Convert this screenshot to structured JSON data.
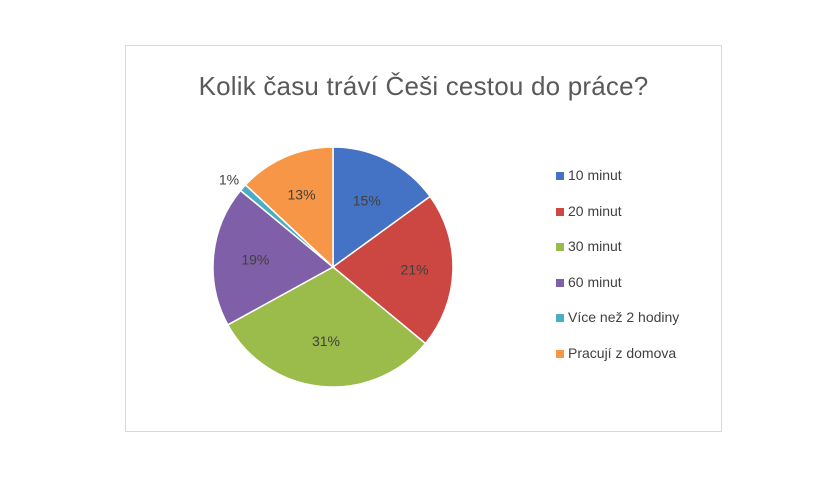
{
  "chart_data": {
    "type": "pie",
    "title": "Kolik času tráví Češi cestou do práce?",
    "categories": [
      "10 minut",
      "20 minut",
      "30 minut",
      "60 minut",
      "Více než 2 hodiny",
      "Pracují z domova"
    ],
    "values": [
      15,
      21,
      31,
      19,
      1,
      13
    ],
    "data_labels": [
      "15%",
      "21%",
      "31%",
      "19%",
      "1%",
      "13%"
    ],
    "colors": [
      "#4472c4",
      "#cc4741",
      "#9bbb4a",
      "#7f5fa8",
      "#4bacc6",
      "#f79646"
    ],
    "legend_position": "right"
  }
}
